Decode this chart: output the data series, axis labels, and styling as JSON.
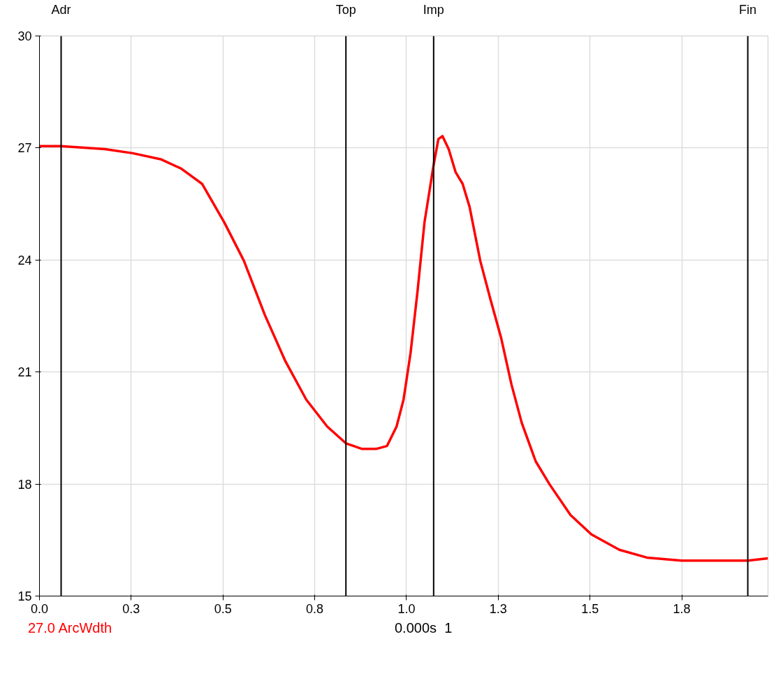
{
  "chart_data": {
    "type": "line",
    "xlim": [
      0,
      1.985
    ],
    "ylim": [
      15,
      30
    ],
    "xticks": [
      {
        "value": 0,
        "label": "0.0"
      },
      {
        "value": 0.25,
        "label": "0.3"
      },
      {
        "value": 0.5,
        "label": "0.5"
      },
      {
        "value": 0.75,
        "label": "0.8"
      },
      {
        "value": 1.0,
        "label": "1.0"
      },
      {
        "value": 1.25,
        "label": "1.3"
      },
      {
        "value": 1.5,
        "label": "1.5"
      },
      {
        "value": 1.75,
        "label": "1.8"
      }
    ],
    "yticks": [
      15,
      18,
      21,
      24,
      27,
      30
    ],
    "grid": true,
    "marker": "none",
    "line_style": "solid",
    "series": [
      {
        "color": "#ff0000",
        "x": [
          0,
          0.059,
          0.178,
          0.254,
          0.33,
          0.386,
          0.443,
          0.504,
          0.557,
          0.614,
          0.67,
          0.727,
          0.784,
          0.835,
          0.879,
          0.917,
          0.947,
          0.973,
          0.992,
          1.011,
          1.03,
          1.049,
          1.074,
          1.087,
          1.098,
          1.115,
          1.134,
          1.153,
          1.172,
          1.201,
          1.229,
          1.258,
          1.286,
          1.314,
          1.352,
          1.39,
          1.447,
          1.504,
          1.58,
          1.655,
          1.75,
          1.93,
          1.985
        ],
        "values": [
          27.05,
          27.05,
          26.97,
          26.86,
          26.7,
          26.45,
          26.04,
          25.0,
          23.98,
          22.53,
          21.29,
          20.26,
          19.54,
          19.09,
          18.94,
          18.94,
          19.02,
          19.54,
          20.26,
          21.5,
          23.15,
          25.0,
          26.55,
          27.24,
          27.32,
          26.97,
          26.35,
          26.04,
          25.42,
          23.98,
          22.94,
          21.91,
          20.67,
          19.64,
          18.61,
          17.99,
          17.17,
          16.65,
          16.24,
          16.03,
          15.95,
          15.95,
          16.01
        ]
      }
    ],
    "ref_lines": [
      {
        "axis": "x",
        "value": 0.059,
        "label": "Adr",
        "color": "#000000"
      },
      {
        "axis": "x",
        "value": 0.835,
        "label": "Top",
        "color": "#000000"
      },
      {
        "axis": "x",
        "value": 1.074,
        "label": "Imp",
        "color": "#000000"
      },
      {
        "axis": "x",
        "value": 1.93,
        "label": "Fin",
        "color": "#000000"
      }
    ],
    "annotations": [
      "27.0 ArcWdth",
      "0.000s  1"
    ]
  }
}
